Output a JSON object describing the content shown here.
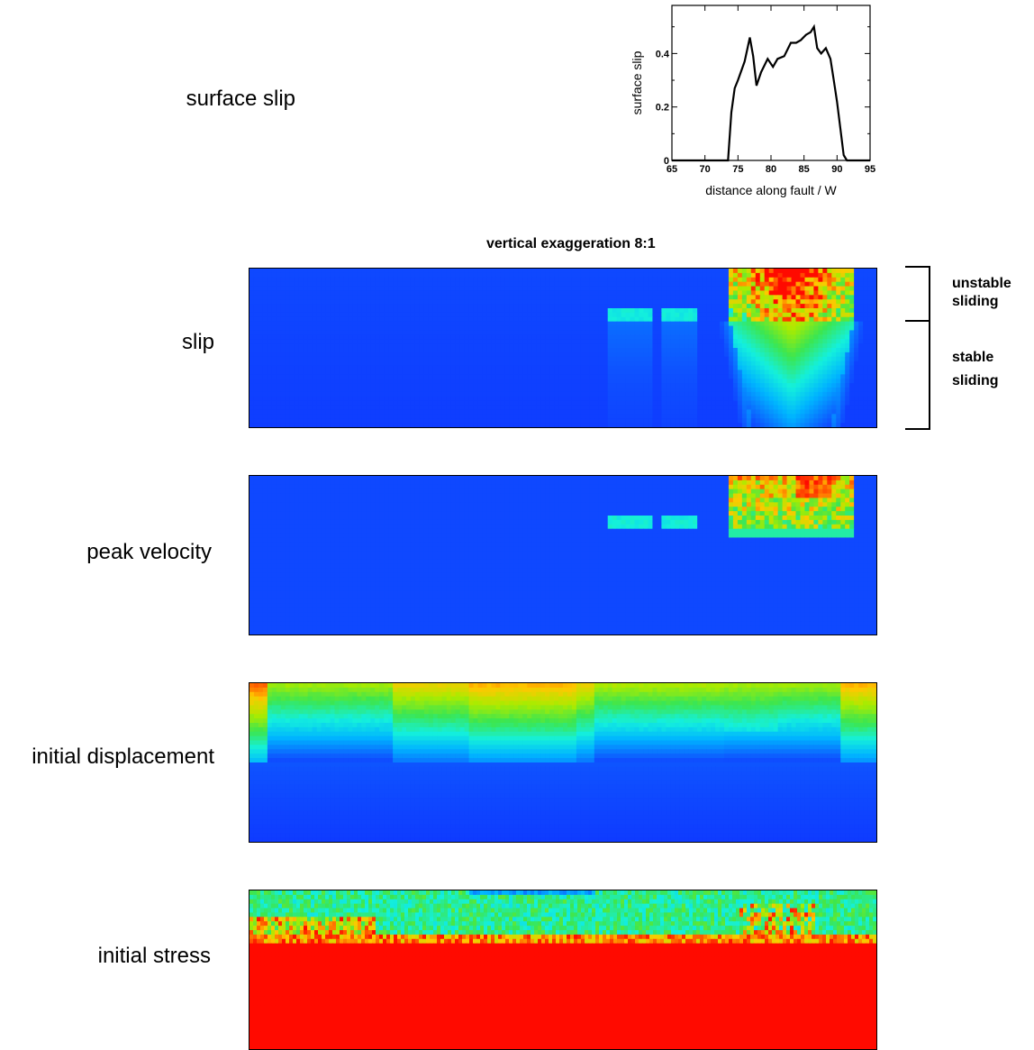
{
  "colors": {
    "low": "#0f4cff",
    "high": "#ff0f00"
  },
  "row_labels": {
    "surface_slip": "surface slip",
    "slip": "slip",
    "peak_velocity": "peak velocity",
    "initial_displacement": "initial displacement",
    "initial_stress": "initial stress"
  },
  "annotation": {
    "vertical_exaggeration": "vertical exaggeration  8:1",
    "unstable": "unstable",
    "sliding_1": "sliding",
    "stable": "stable",
    "sliding_2": "sliding"
  },
  "chart_data": [
    {
      "type": "line",
      "xlabel": "distance along fault / W",
      "ylabel": "surface slip",
      "xlim": [
        65,
        95
      ],
      "ylim": [
        0,
        0.58
      ],
      "xticks": [
        "65",
        "70",
        "75",
        "80",
        "85",
        "90",
        "95"
      ],
      "yticks": [
        "0",
        "0.2",
        "0.4"
      ],
      "x": [
        65,
        73.5,
        74,
        74.5,
        75,
        76,
        76.8,
        77.3,
        77.8,
        78.5,
        79.5,
        80.3,
        81,
        82,
        83,
        83.8,
        84.5,
        85.3,
        86,
        86.5,
        87,
        87.6,
        88.3,
        89,
        89.5,
        90,
        90.5,
        91,
        91.5,
        95
      ],
      "y": [
        0,
        0,
        0.18,
        0.27,
        0.3,
        0.37,
        0.46,
        0.39,
        0.28,
        0.33,
        0.38,
        0.35,
        0.38,
        0.39,
        0.44,
        0.44,
        0.45,
        0.47,
        0.48,
        0.5,
        0.42,
        0.4,
        0.42,
        0.38,
        0.3,
        0.22,
        0.12,
        0.02,
        0,
        0
      ]
    },
    {
      "type": "heatmap",
      "name": "slip",
      "description_free": true,
      "features": [
        {
          "kind": "high_lobe",
          "x0": 0.77,
          "x1": 0.96,
          "peak": 0.95
        },
        {
          "kind": "patch",
          "x0": 0.57,
          "x1": 0.64,
          "depth": 0.3,
          "value": 0.45
        },
        {
          "kind": "patch",
          "x0": 0.656,
          "x1": 0.716,
          "depth": 0.3,
          "value": 0.45
        }
      ]
    },
    {
      "type": "heatmap",
      "name": "peak velocity",
      "features": [
        {
          "kind": "high_block",
          "x0": 0.765,
          "x1": 0.965,
          "peak": 0.9
        },
        {
          "kind": "patch",
          "x0": 0.573,
          "x1": 0.643,
          "value": 0.45
        },
        {
          "kind": "patch",
          "x0": 0.656,
          "x1": 0.716,
          "value": 0.45
        }
      ]
    },
    {
      "type": "heatmap",
      "name": "initial displacement",
      "features": [
        {
          "kind": "top_band",
          "value_top": 0.7,
          "value_mid": 0.4,
          "value_bottom": 0.12
        }
      ]
    },
    {
      "type": "heatmap",
      "name": "initial stress",
      "features": [
        {
          "kind": "noisy_top",
          "value": 0.45
        },
        {
          "kind": "saturated_bottom",
          "value": 1.0
        }
      ]
    }
  ]
}
